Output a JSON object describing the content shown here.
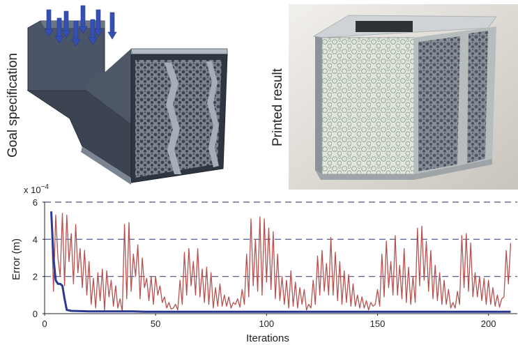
{
  "panels": {
    "goal_label": "Goal specification",
    "printed_label": "Printed result"
  },
  "chart_data": {
    "type": "line",
    "xlabel": "Iterations",
    "ylabel": "Error (m)",
    "y_multiplier": "x 10",
    "y_exponent": "−4",
    "xlim": [
      0,
      213
    ],
    "ylim": [
      0,
      6
    ],
    "x_ticks": [
      0,
      50,
      100,
      150,
      200
    ],
    "y_ticks": [
      0,
      2,
      4,
      6
    ],
    "grid": "dashed horizontal at 2, 4, 6",
    "series": [
      {
        "color": "#2b3990",
        "points": [
          [
            3,
            5.5
          ],
          [
            4,
            3.0
          ],
          [
            5,
            1.8
          ],
          [
            6,
            1.6
          ],
          [
            7,
            1.6
          ],
          [
            8,
            1.5
          ],
          [
            9,
            0.8
          ],
          [
            10,
            0.2
          ],
          [
            12,
            0.15
          ],
          [
            20,
            0.12
          ],
          [
            40,
            0.12
          ],
          [
            45,
            0.1
          ],
          [
            80,
            0.1
          ],
          [
            150,
            0.1
          ],
          [
            210,
            0.1
          ]
        ]
      },
      {
        "color": "#b5514e",
        "points": [
          [
            3,
            5.4
          ],
          [
            4,
            1.2
          ],
          [
            5,
            5.3
          ],
          [
            6,
            3.0
          ],
          [
            7,
            2.0
          ],
          [
            8,
            5.4
          ],
          [
            9,
            1.5
          ],
          [
            10,
            5.3
          ],
          [
            11,
            2.8
          ],
          [
            12,
            4.3
          ],
          [
            13,
            1.6
          ],
          [
            14,
            4.8
          ],
          [
            15,
            2.2
          ],
          [
            16,
            3.5
          ],
          [
            17,
            1.4
          ],
          [
            18,
            3.4
          ],
          [
            19,
            1.0
          ],
          [
            20,
            2.8
          ],
          [
            21,
            0.5
          ],
          [
            22,
            1.9
          ],
          [
            23,
            0.3
          ],
          [
            24,
            2.2
          ],
          [
            25,
            0.7
          ],
          [
            26,
            2.4
          ],
          [
            27,
            0.2
          ],
          [
            28,
            2.3
          ],
          [
            29,
            0.9
          ],
          [
            30,
            1.8
          ],
          [
            31,
            0.4
          ],
          [
            32,
            1.5
          ],
          [
            33,
            0.3
          ],
          [
            34,
            0.8
          ],
          [
            35,
            0.1
          ],
          [
            36,
            4.8
          ],
          [
            37,
            0.8
          ],
          [
            38,
            4.9
          ],
          [
            39,
            1.2
          ],
          [
            40,
            3.2
          ],
          [
            41,
            2.0
          ],
          [
            42,
            3.7
          ],
          [
            43,
            0.8
          ],
          [
            44,
            3.0
          ],
          [
            45,
            1.4
          ],
          [
            46,
            1.9
          ],
          [
            47,
            0.7
          ],
          [
            48,
            2.0
          ],
          [
            49,
            0.5
          ],
          [
            50,
            2.0
          ],
          [
            51,
            1.0
          ],
          [
            52,
            1.5
          ],
          [
            53,
            0.6
          ],
          [
            54,
            0.9
          ],
          [
            55,
            0.3
          ],
          [
            56,
            0.6
          ],
          [
            57,
            0.25
          ],
          [
            58,
            0.3
          ],
          [
            59,
            0.5
          ],
          [
            60,
            0.2
          ],
          [
            61,
            1.8
          ],
          [
            62,
            0.5
          ],
          [
            63,
            3.3
          ],
          [
            64,
            1.0
          ],
          [
            65,
            3.5
          ],
          [
            66,
            1.5
          ],
          [
            67,
            2.8
          ],
          [
            68,
            1.0
          ],
          [
            69,
            3.5
          ],
          [
            70,
            0.9
          ],
          [
            71,
            2.4
          ],
          [
            72,
            0.6
          ],
          [
            73,
            2.5
          ],
          [
            74,
            0.5
          ],
          [
            75,
            2.2
          ],
          [
            76,
            0.3
          ],
          [
            77,
            1.4
          ],
          [
            78,
            0.4
          ],
          [
            79,
            1.6
          ],
          [
            80,
            0.4
          ],
          [
            81,
            1.0
          ],
          [
            82,
            0.4
          ],
          [
            83,
            0.9
          ],
          [
            84,
            0.3
          ],
          [
            85,
            0.6
          ],
          [
            86,
            0.5
          ],
          [
            87,
            0.8
          ],
          [
            88,
            0.35
          ],
          [
            89,
            1.3
          ],
          [
            90,
            0.5
          ],
          [
            91,
            3.2
          ],
          [
            92,
            0.9
          ],
          [
            93,
            5.1
          ],
          [
            94,
            1.5
          ],
          [
            95,
            4.0
          ],
          [
            96,
            1.2
          ],
          [
            97,
            5.2
          ],
          [
            98,
            1.0
          ],
          [
            99,
            5.1
          ],
          [
            100,
            1.7
          ],
          [
            101,
            4.6
          ],
          [
            102,
            1.3
          ],
          [
            103,
            4.4
          ],
          [
            104,
            0.8
          ],
          [
            105,
            3.2
          ],
          [
            106,
            0.7
          ],
          [
            107,
            2.0
          ],
          [
            108,
            0.5
          ],
          [
            109,
            1.8
          ],
          [
            110,
            0.3
          ],
          [
            111,
            2.3
          ],
          [
            112,
            0.4
          ],
          [
            113,
            1.7
          ],
          [
            114,
            0.3
          ],
          [
            115,
            1.4
          ],
          [
            116,
            0.5
          ],
          [
            117,
            1.3
          ],
          [
            118,
            0.2
          ],
          [
            119,
            0.5
          ],
          [
            120,
            0.3
          ],
          [
            121,
            1.8
          ],
          [
            122,
            0.5
          ],
          [
            123,
            3.1
          ],
          [
            124,
            1.0
          ],
          [
            125,
            3.4
          ],
          [
            126,
            1.2
          ],
          [
            127,
            2.7
          ],
          [
            128,
            1.0
          ],
          [
            129,
            4.1
          ],
          [
            130,
            1.0
          ],
          [
            131,
            3.3
          ],
          [
            132,
            0.7
          ],
          [
            133,
            2.8
          ],
          [
            134,
            0.5
          ],
          [
            135,
            2.3
          ],
          [
            136,
            0.6
          ],
          [
            137,
            2.1
          ],
          [
            138,
            0.4
          ],
          [
            139,
            1.6
          ],
          [
            140,
            0.4
          ],
          [
            141,
            1.0
          ],
          [
            142,
            0.3
          ],
          [
            143,
            0.9
          ],
          [
            144,
            0.3
          ],
          [
            145,
            0.7
          ],
          [
            146,
            0.2
          ],
          [
            147,
            0.6
          ],
          [
            148,
            0.4
          ],
          [
            149,
            0.5
          ],
          [
            150,
            1.3
          ],
          [
            151,
            0.4
          ],
          [
            152,
            3.2
          ],
          [
            153,
            0.9
          ],
          [
            154,
            3.9
          ],
          [
            155,
            1.4
          ],
          [
            156,
            2.8
          ],
          [
            157,
            1.0
          ],
          [
            158,
            4.2
          ],
          [
            159,
            1.0
          ],
          [
            160,
            2.6
          ],
          [
            161,
            0.8
          ],
          [
            162,
            3.5
          ],
          [
            163,
            0.6
          ],
          [
            164,
            2.5
          ],
          [
            165,
            0.5
          ],
          [
            166,
            2.0
          ],
          [
            167,
            0.6
          ],
          [
            168,
            4.6
          ],
          [
            169,
            1.5
          ],
          [
            170,
            4.7
          ],
          [
            171,
            1.8
          ],
          [
            172,
            3.9
          ],
          [
            173,
            1.2
          ],
          [
            174,
            3.4
          ],
          [
            175,
            0.8
          ],
          [
            176,
            2.6
          ],
          [
            177,
            0.7
          ],
          [
            178,
            2.2
          ],
          [
            179,
            0.5
          ],
          [
            180,
            1.8
          ],
          [
            181,
            0.5
          ],
          [
            182,
            1.3
          ],
          [
            183,
            0.3
          ],
          [
            184,
            0.6
          ],
          [
            185,
            0.3
          ],
          [
            186,
            1.2
          ],
          [
            187,
            0.5
          ],
          [
            188,
            4.2
          ],
          [
            189,
            1.4
          ],
          [
            190,
            4.3
          ],
          [
            191,
            1.2
          ],
          [
            192,
            3.8
          ],
          [
            193,
            0.9
          ],
          [
            194,
            2.2
          ],
          [
            195,
            0.9
          ],
          [
            196,
            2.0
          ],
          [
            197,
            0.7
          ],
          [
            198,
            1.9
          ],
          [
            199,
            0.5
          ],
          [
            200,
            1.8
          ],
          [
            201,
            0.5
          ],
          [
            202,
            1.4
          ],
          [
            203,
            0.4
          ],
          [
            204,
            1.0
          ],
          [
            205,
            0.35
          ],
          [
            206,
            0.8
          ],
          [
            207,
            0.9
          ],
          [
            208,
            3.4
          ],
          [
            209,
            1.6
          ],
          [
            210,
            3.8
          ]
        ]
      }
    ]
  }
}
